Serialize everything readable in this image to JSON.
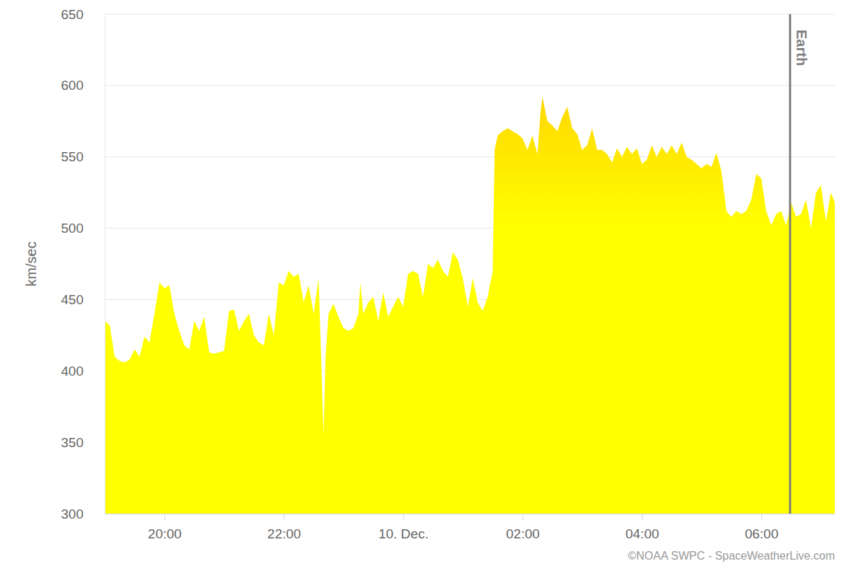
{
  "chart_data": {
    "type": "area",
    "ylabel": "km/sec",
    "color": "#ffff00",
    "grid": true,
    "xlim": [
      -300,
      434
    ],
    "xticks": [
      {
        "value": -240,
        "label": "20:00"
      },
      {
        "value": -120,
        "label": "22:00"
      },
      {
        "value": 0,
        "label": "10. Dec."
      },
      {
        "value": 120,
        "label": "02:00"
      },
      {
        "value": 240,
        "label": "04:00"
      },
      {
        "value": 360,
        "label": "06:00"
      }
    ],
    "ylim": [
      300,
      650
    ],
    "yticks": [
      300,
      350,
      400,
      450,
      500,
      550,
      600,
      650
    ],
    "annotations": [
      {
        "text": "Earth",
        "x": 389
      }
    ],
    "source": "©NOAA SWPC - SpaceWeatherLive.com",
    "x": [
      -300,
      -295,
      -290,
      -285,
      -280,
      -275,
      -270,
      -265,
      -260,
      -255,
      -250,
      -245,
      -240,
      -235,
      -230,
      -225,
      -220,
      -215,
      -210,
      -205,
      -200,
      -195,
      -190,
      -185,
      -180,
      -175,
      -170,
      -165,
      -160,
      -155,
      -150,
      -145,
      -140,
      -135,
      -130,
      -125,
      -120,
      -115,
      -110,
      -105,
      -100,
      -95,
      -90,
      -85,
      -82,
      -80,
      -78,
      -75,
      -70,
      -65,
      -60,
      -55,
      -50,
      -45,
      -43,
      -40,
      -35,
      -30,
      -25,
      -20,
      -15,
      -10,
      -5,
      0,
      5,
      10,
      15,
      20,
      25,
      30,
      35,
      40,
      45,
      50,
      55,
      60,
      65,
      70,
      75,
      80,
      85,
      90,
      92,
      95,
      100,
      105,
      110,
      115,
      120,
      125,
      130,
      135,
      138,
      140,
      145,
      150,
      155,
      160,
      165,
      170,
      175,
      180,
      185,
      190,
      195,
      200,
      205,
      210,
      215,
      220,
      225,
      230,
      235,
      240,
      245,
      250,
      255,
      260,
      265,
      270,
      275,
      280,
      285,
      290,
      295,
      300,
      305,
      310,
      315,
      320,
      325,
      330,
      335,
      340,
      345,
      350,
      355,
      360,
      365,
      370,
      375,
      380,
      385,
      390,
      395,
      400,
      405,
      410,
      415,
      420,
      425,
      430,
      434
    ],
    "values": [
      435,
      432,
      410,
      407,
      406,
      408,
      415,
      410,
      424,
      420,
      440,
      462,
      458,
      460,
      440,
      428,
      418,
      415,
      435,
      428,
      438,
      413,
      412,
      413,
      414,
      442,
      443,
      428,
      435,
      440,
      425,
      420,
      418,
      440,
      425,
      462,
      460,
      470,
      466,
      468,
      448,
      460,
      440,
      465,
      400,
      355,
      410,
      440,
      447,
      438,
      430,
      428,
      430,
      440,
      462,
      440,
      448,
      452,
      435,
      455,
      438,
      445,
      452,
      445,
      468,
      470,
      468,
      452,
      475,
      472,
      478,
      470,
      466,
      483,
      478,
      465,
      445,
      465,
      448,
      442,
      452,
      470,
      555,
      565,
      568,
      570,
      568,
      566,
      563,
      555,
      565,
      552,
      580,
      592,
      575,
      572,
      568,
      578,
      585,
      570,
      566,
      555,
      558,
      570,
      555,
      555,
      552,
      546,
      556,
      550,
      557,
      552,
      556,
      545,
      548,
      558,
      550,
      557,
      552,
      558,
      552,
      560,
      550,
      548,
      545,
      542,
      545,
      543,
      553,
      540,
      512,
      508,
      512,
      510,
      512,
      520,
      538,
      535,
      512,
      502,
      510,
      512,
      502,
      518,
      508,
      510,
      520,
      500,
      525,
      530,
      505,
      525,
      518
    ]
  }
}
